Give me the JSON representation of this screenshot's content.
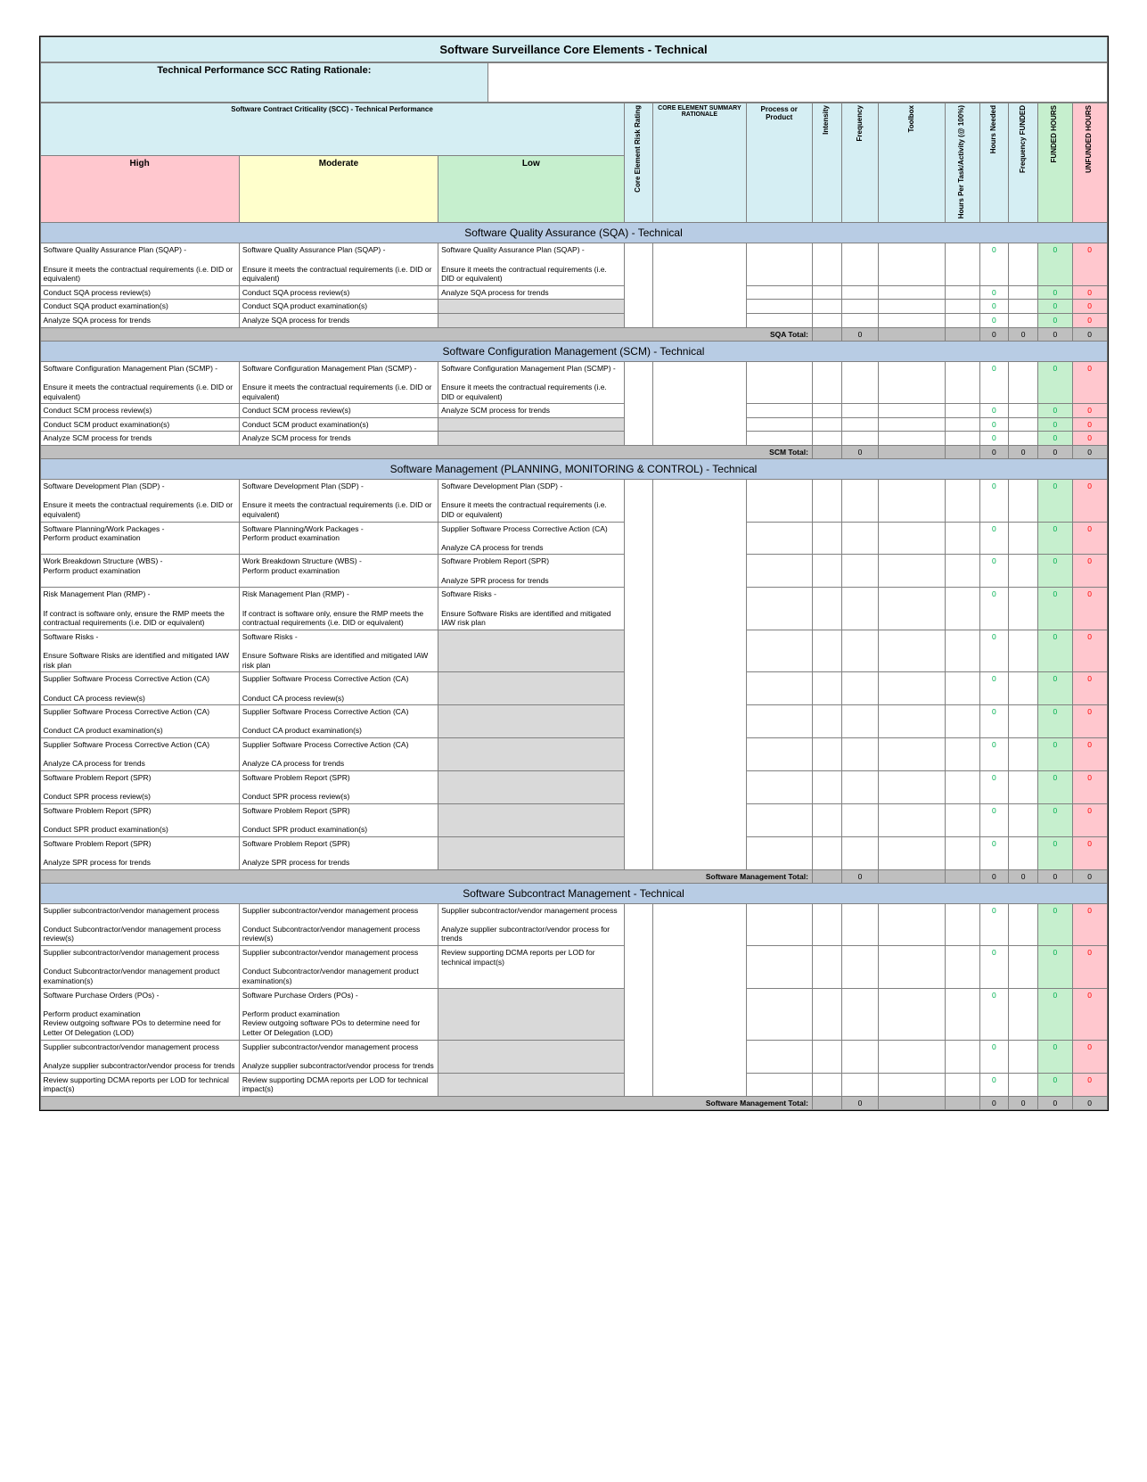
{
  "title": "Software Surveillance Core Elements - Technical",
  "rationale_label": "Technical Performance SCC Rating Rationale:",
  "scc_title": "Software Contract Criticality (SCC) - Technical Performance",
  "headers": {
    "core_risk": "Core Element Risk Rating",
    "core_summary": "CORE ELEMENT SUMMARY RATIONALE",
    "process": "Process or Product",
    "intensity": "Intensity",
    "frequency": "Frequency",
    "toolbox": "Toolbox",
    "hours_per": "Hours Per Task/Activity (@ 100%)",
    "hours_needed": "Hours Needed",
    "freq_funded": "Frequency FUNDED",
    "funded": "FUNDED HOURS",
    "unfunded": "UNFUNDED HOURS"
  },
  "grades": {
    "high": "High",
    "moderate": "Moderate",
    "low": "Low"
  },
  "colors": {
    "title_bg": "#d5eef3",
    "section_bg": "#b8cce4",
    "high_bg": "#ffc7ce",
    "mod_bg": "#ffffcc",
    "low_bg": "#c6efce",
    "grey_bg": "#d9d9d9",
    "green_text": "#00b050",
    "red_text": "#ff0000"
  },
  "sections": [
    {
      "title": "Software Quality Assurance (SQA) - Technical",
      "total_label": "SQA Total:",
      "rows": [
        {
          "h": "Software Quality Assurance Plan (SQAP) -\n\nEnsure it meets the contractual requirements (i.e. DID or equivalent)",
          "m": "Software Quality Assurance Plan (SQAP) -\n\nEnsure it meets the contractual requirements (i.e. DID or equivalent)",
          "l": "Software Quality Assurance Plan (SQAP) -\n\nEnsure it meets the contractual requirements (i.e. DID or equivalent)"
        },
        {
          "h": "Conduct SQA process review(s)",
          "m": "Conduct SQA process review(s)",
          "l": "Analyze SQA process for trends"
        },
        {
          "h": "Conduct SQA product examination(s)",
          "m": "Conduct SQA product examination(s)",
          "l": ""
        },
        {
          "h": "Analyze SQA process for trends",
          "m": "Analyze SQA process for trends",
          "l": ""
        }
      ]
    },
    {
      "title": "Software Configuration Management (SCM) - Technical",
      "total_label": "SCM Total:",
      "rows": [
        {
          "h": "Software Configuration Management Plan (SCMP) -\n\nEnsure it meets the contractual requirements (i.e. DID or equivalent)",
          "m": "Software Configuration Management Plan (SCMP) -\n\nEnsure it meets the contractual requirements (i.e. DID or equivalent)",
          "l": "Software Configuration Management Plan (SCMP) -\n\nEnsure it meets the contractual requirements (i.e. DID or equivalent)"
        },
        {
          "h": "Conduct SCM process review(s)",
          "m": "Conduct SCM process review(s)",
          "l": "Analyze SCM process for trends"
        },
        {
          "h": "Conduct SCM product examination(s)",
          "m": "Conduct SCM product examination(s)",
          "l": ""
        },
        {
          "h": "Analyze SCM process for trends",
          "m": "Analyze SCM process for trends",
          "l": ""
        }
      ]
    },
    {
      "title": "Software Management (PLANNING, MONITORING & CONTROL) - Technical",
      "total_label": "Software Management Total:",
      "rows": [
        {
          "h": "Software Development Plan (SDP) -\n\nEnsure it meets the contractual requirements (i.e. DID or equivalent)",
          "m": "Software Development Plan (SDP) -\n\nEnsure it meets the contractual requirements (i.e. DID or equivalent)",
          "l": "Software Development Plan (SDP) -\n\nEnsure it meets the contractual requirements (i.e. DID or equivalent)"
        },
        {
          "h": "Software Planning/Work Packages -\nPerform product examination",
          "m": "Software Planning/Work Packages -\nPerform product examination",
          "l": "Supplier Software Process Corrective Action (CA)\n\nAnalyze CA process for trends"
        },
        {
          "h": "Work Breakdown Structure (WBS) -\nPerform product examination",
          "m": "Work Breakdown Structure (WBS) -\nPerform product examination",
          "l": "Software Problem Report (SPR)\n\nAnalyze SPR process for trends"
        },
        {
          "h": "Risk Management Plan  (RMP) -\n\nIf contract is software only, ensure the RMP meets the contractual requirements (i.e. DID or equivalent)",
          "m": "Risk Management Plan  (RMP) -\n\nIf contract is software only, ensure the RMP meets the contractual requirements (i.e. DID or equivalent)",
          "l": "Software Risks -\n\nEnsure Software Risks are identified and mitigated IAW risk plan"
        },
        {
          "h": "Software Risks -\n\nEnsure Software Risks are identified and mitigated IAW risk plan",
          "m": "Software Risks -\n\nEnsure Software Risks are identified and mitigated IAW risk plan",
          "l": ""
        },
        {
          "h": "Supplier Software Process Corrective Action (CA)\n\nConduct CA process review(s)",
          "m": "Supplier Software Process Corrective Action (CA)\n\nConduct CA process review(s)",
          "l": ""
        },
        {
          "h": "Supplier Software Process Corrective Action (CA)\n\nConduct CA product examination(s)",
          "m": "Supplier Software Process Corrective Action (CA)\n\nConduct CA product examination(s)",
          "l": ""
        },
        {
          "h": "Supplier Software Process Corrective Action (CA)\n\nAnalyze CA process for trends",
          "m": "Supplier Software Process Corrective Action (CA)\n\nAnalyze CA process for trends",
          "l": ""
        },
        {
          "h": "Software Problem Report (SPR)\n\nConduct SPR process review(s)",
          "m": "Software Problem Report (SPR)\n\nConduct SPR process review(s)",
          "l": ""
        },
        {
          "h": "Software Problem Report (SPR)\n\nConduct SPR product examination(s)",
          "m": "Software Problem Report (SPR)\n\nConduct SPR product examination(s)",
          "l": ""
        },
        {
          "h": "Software Problem Report (SPR)\n\nAnalyze SPR process for trends",
          "m": "Software Problem Report (SPR)\n\nAnalyze SPR process for trends",
          "l": ""
        }
      ]
    },
    {
      "title": "Software Subcontract Management - Technical",
      "total_label": "Software Management Total:",
      "rows": [
        {
          "h": "Supplier subcontractor/vendor management process\n\nConduct Subcontractor/vendor management process review(s)",
          "m": "Supplier subcontractor/vendor management process\n\nConduct Subcontractor/vendor management process review(s)",
          "l": "Supplier subcontractor/vendor management process\n\nAnalyze supplier subcontractor/vendor process for trends"
        },
        {
          "h": "Supplier subcontractor/vendor management process\n\nConduct Subcontractor/vendor management product examination(s)",
          "m": "Supplier subcontractor/vendor management process\n\nConduct Subcontractor/vendor management product examination(s)",
          "l": "Review supporting DCMA reports per LOD for technical impact(s)"
        },
        {
          "h": "Software Purchase Orders (POs) -\n\nPerform product examination\nReview outgoing software POs to determine need for Letter Of Delegation (LOD)",
          "m": "Software Purchase Orders (POs) -\n\nPerform product examination\nReview outgoing software POs to determine need for Letter Of Delegation (LOD)",
          "l": ""
        },
        {
          "h": "Supplier subcontractor/vendor management process\n\nAnalyze supplier subcontractor/vendor process for trends",
          "m": "Supplier subcontractor/vendor management process\n\nAnalyze supplier subcontractor/vendor process for trends",
          "l": ""
        },
        {
          "h": "Review supporting DCMA reports per LOD for technical impact(s)",
          "m": "Review supporting DCMA reports per LOD for technical impact(s)",
          "l": ""
        }
      ]
    }
  ]
}
